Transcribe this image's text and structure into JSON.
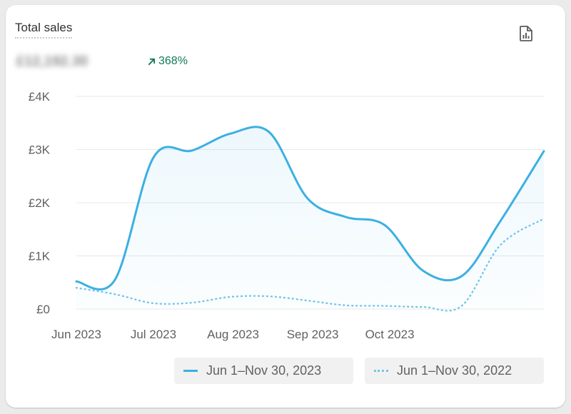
{
  "card": {
    "title": "Total sales",
    "value": "£12,192.30",
    "change": "368%",
    "report_icon": "report-icon",
    "change_icon": "arrow-up-right-icon"
  },
  "colors": {
    "current": "#3bb0e2",
    "previous": "#74c6ea",
    "positive": "#107a57",
    "grid": "#e8e8e8"
  },
  "chart_data": {
    "type": "area",
    "title": "",
    "xlabel": "",
    "ylabel": "",
    "ylim": [
      0,
      4000
    ],
    "yticks": [
      0,
      1000,
      2000,
      3000,
      4000
    ],
    "ytick_labels": [
      "£0",
      "£1K",
      "£2K",
      "£3K",
      "£4K"
    ],
    "xlim": [
      0,
      182
    ],
    "xticks": [
      0,
      30,
      61,
      92,
      122
    ],
    "xtick_labels": [
      "Jun 2023",
      "Jul 2023",
      "Aug 2023",
      "Sep 2023",
      "Oct 2023"
    ],
    "grid": true,
    "legend_position": "bottom-right",
    "series": [
      {
        "name": "Jun 1–Nov 30, 2023",
        "style": "solid",
        "x": [
          0,
          15,
          30,
          45,
          60,
          75,
          90,
          105,
          120,
          135,
          150,
          165,
          182
        ],
        "values": [
          520,
          550,
          2850,
          2980,
          3300,
          3330,
          2080,
          1730,
          1580,
          720,
          620,
          1650,
          2970
        ]
      },
      {
        "name": "Jun 1–Nov 30, 2022",
        "style": "dotted",
        "x": [
          0,
          15,
          30,
          45,
          60,
          75,
          90,
          105,
          120,
          135,
          150,
          165,
          182
        ],
        "values": [
          400,
          280,
          110,
          120,
          230,
          240,
          160,
          70,
          60,
          40,
          60,
          1200,
          1700
        ]
      }
    ]
  }
}
